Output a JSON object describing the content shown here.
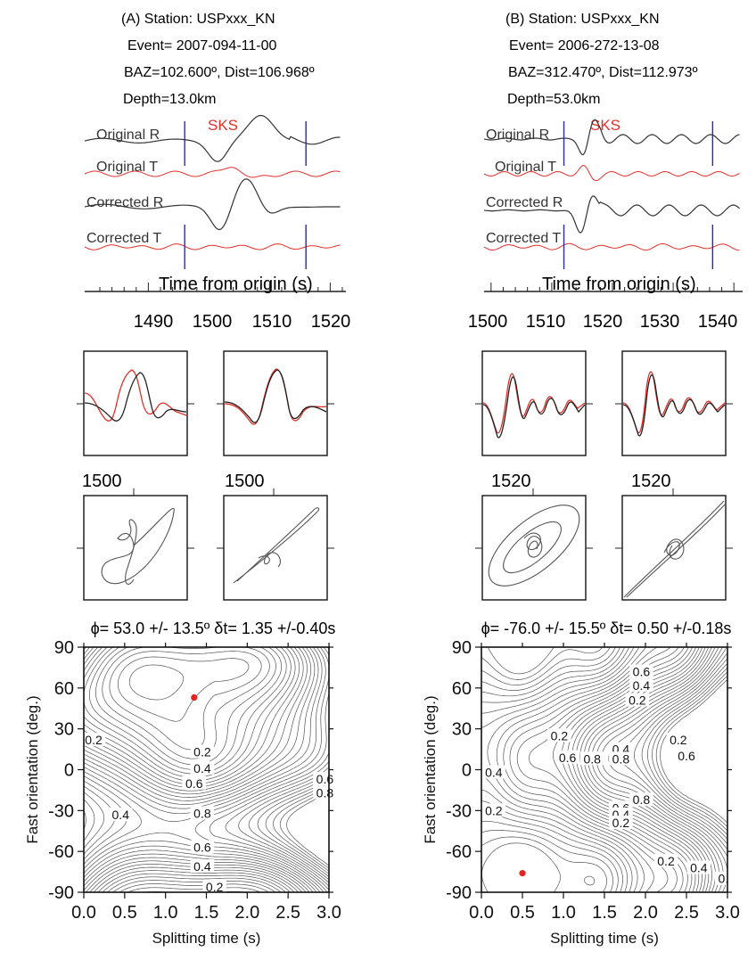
{
  "colors": {
    "black_trace": "#333333",
    "red_trace": "#e0302a",
    "marker_line": "#2a2aa8",
    "contour": "#555555",
    "dot": "#e8221c"
  },
  "panels": [
    {
      "id": "A",
      "header": {
        "station": "(A) Station: USPxxx_KN",
        "event": "Event= 2007-094-11-00",
        "baz_dist": "BAZ=102.600º, Dist=106.968º",
        "depth": "Depth=13.0km"
      },
      "phase_label": "SKS",
      "trace_labels": [
        "Original R",
        "Original T",
        "Corrected R",
        "Corrected T"
      ],
      "time_axis": {
        "label": "Time from origin (s)",
        "ticks": [
          "1490",
          "1500",
          "1510",
          "1520"
        ],
        "range": [
          1482,
          1522
        ]
      },
      "window_marks": [
        1496,
        1516
      ],
      "small_plot_ticks": [
        "1500",
        "1500"
      ],
      "result_title": "ϕ= 53.0 +/- 13.5º δt= 1.35 +/-0.40s"
    },
    {
      "id": "B",
      "header": {
        "station": "(B) Station: USPxxx_KN",
        "event": "Event= 2006-272-13-08",
        "baz_dist": "BAZ=312.470º, Dist=112.973º",
        "depth": "Depth=53.0km"
      },
      "phase_label": "SKS",
      "trace_labels": [
        "Original R",
        "Original T",
        "Corrected R",
        "Corrected T"
      ],
      "time_axis": {
        "label": "Time from origin (s)",
        "ticks": [
          "1500",
          "1510",
          "1520",
          "1530",
          "1540"
        ],
        "range": [
          1499,
          1541
        ]
      },
      "window_marks": [
        1512,
        1536.5
      ],
      "small_plot_ticks": [
        "1520",
        "1520"
      ],
      "result_title": "ϕ= -76.0 +/- 15.5º δt= 0.50 +/-0.18s"
    }
  ],
  "chart_data": [
    {
      "type": "contour",
      "panel": "A",
      "xlabel": "Splitting time (s)",
      "ylabel": "Fast orientation (deg.)",
      "xlim": [
        0.0,
        3.0
      ],
      "ylim": [
        -90,
        90
      ],
      "xticks": [
        "0.0",
        "0.5",
        "1.0",
        "1.5",
        "2.0",
        "2.5",
        "3.0"
      ],
      "yticks": [
        "90",
        "60",
        "30",
        "0",
        "-30",
        "-60",
        "-90"
      ],
      "best_fit": {
        "x": 1.35,
        "y": 53
      },
      "contour_labels": [
        {
          "text": "0.2",
          "x": 0.12,
          "y": 22
        },
        {
          "text": "0.2",
          "x": 1.45,
          "y": 13
        },
        {
          "text": "0.4",
          "x": 1.45,
          "y": 1
        },
        {
          "text": "0.6",
          "x": 1.35,
          "y": -10
        },
        {
          "text": "0.4",
          "x": 0.45,
          "y": -33
        },
        {
          "text": "0.8",
          "x": 1.45,
          "y": -32
        },
        {
          "text": "0.6",
          "x": 1.45,
          "y": -57
        },
        {
          "text": "0.4",
          "x": 1.45,
          "y": -71
        },
        {
          "text": "0.2",
          "x": 1.6,
          "y": -86
        },
        {
          "text": "0.6",
          "x": 2.95,
          "y": -7
        },
        {
          "text": "0.8",
          "x": 2.95,
          "y": -17
        }
      ]
    },
    {
      "type": "contour",
      "panel": "B",
      "xlabel": "Splitting time (s)",
      "ylabel": "Fast orientation (deg.)",
      "xlim": [
        0.0,
        3.0
      ],
      "ylim": [
        -90,
        90
      ],
      "xticks": [
        "0.0",
        "0.5",
        "1.0",
        "1.5",
        "2.0",
        "2.5",
        "3.0"
      ],
      "yticks": [
        "90",
        "60",
        "30",
        "0",
        "-30",
        "-60",
        "-90"
      ],
      "best_fit": {
        "x": 0.5,
        "y": -76
      },
      "contour_labels": [
        {
          "text": "0.6",
          "x": 1.95,
          "y": 72
        },
        {
          "text": "0.4",
          "x": 1.95,
          "y": 62
        },
        {
          "text": "0.2",
          "x": 1.9,
          "y": 51
        },
        {
          "text": "0.2",
          "x": 0.95,
          "y": 25
        },
        {
          "text": "0.2",
          "x": 2.4,
          "y": 22
        },
        {
          "text": "0.6",
          "x": 1.05,
          "y": 9
        },
        {
          "text": "0.4",
          "x": 1.7,
          "y": 15
        },
        {
          "text": "0.8",
          "x": 1.35,
          "y": 8
        },
        {
          "text": "0.8",
          "x": 1.7,
          "y": 8
        },
        {
          "text": "0.6",
          "x": 2.5,
          "y": 10
        },
        {
          "text": "0.4",
          "x": 0.15,
          "y": -2
        },
        {
          "text": "0.8",
          "x": 1.95,
          "y": -22
        },
        {
          "text": "0.6",
          "x": 1.7,
          "y": -28
        },
        {
          "text": "0.4",
          "x": 1.7,
          "y": -33
        },
        {
          "text": "0.2",
          "x": 1.7,
          "y": -39
        },
        {
          "text": "0.2",
          "x": 0.15,
          "y": -30
        },
        {
          "text": "0.2",
          "x": 2.25,
          "y": -67
        },
        {
          "text": "0.4",
          "x": 2.65,
          "y": -72
        },
        {
          "text": "0.",
          "x": 2.95,
          "y": -80
        }
      ]
    }
  ]
}
